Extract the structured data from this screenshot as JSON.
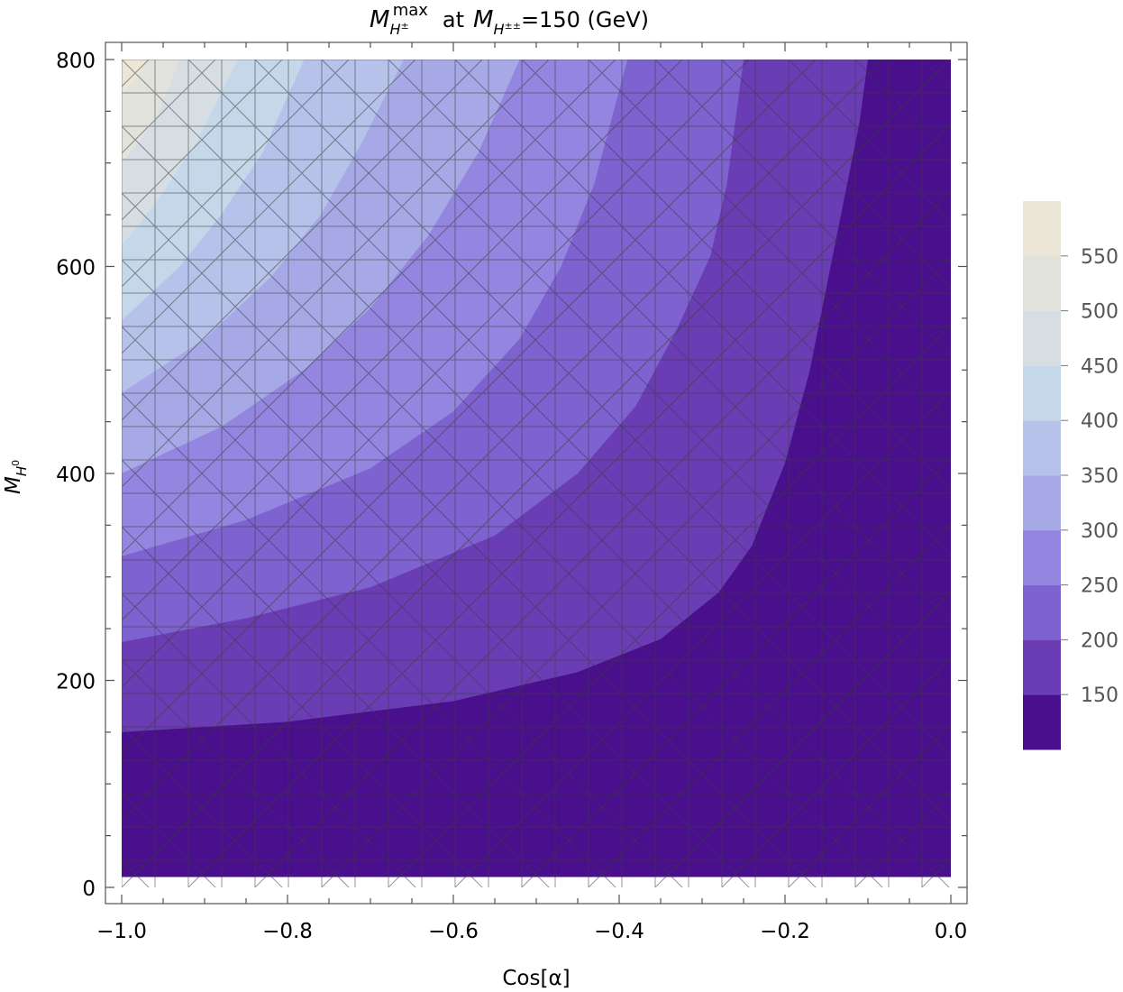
{
  "chart_data": {
    "type": "contour",
    "title": {
      "symbol": "M",
      "sub": "H",
      "sub_sup": "±",
      "sup": "max",
      "middle": "at",
      "symbol2": "M",
      "sub2": "H",
      "sub2_sup": "±±",
      "rest": "=150 (GeV)"
    },
    "xlabel": "Cos[α]",
    "ylabel": {
      "symbol": "M",
      "sub": "H",
      "sub_sup": "0"
    },
    "xlim": [
      -1.0,
      0.0
    ],
    "ylim": [
      0,
      800
    ],
    "xticks": [
      -1.0,
      -0.8,
      -0.6,
      -0.4,
      -0.2,
      0.0
    ],
    "xtick_labels": [
      "−1.0",
      "−0.8",
      "−0.6",
      "−0.4",
      "−0.2",
      "0.0"
    ],
    "yticks": [
      0,
      200,
      400,
      600,
      800
    ],
    "ytick_labels": [
      "0",
      "200",
      "400",
      "600",
      "800"
    ],
    "colorbar": {
      "labels": [
        "150",
        "200",
        "250",
        "300",
        "350",
        "400",
        "450",
        "500",
        "550"
      ],
      "levels": [
        150,
        200,
        250,
        300,
        350,
        400,
        450,
        500,
        550
      ],
      "colors": [
        "#4a0f8c",
        "#6a3db4",
        "#7e62d0",
        "#9485e0",
        "#a6a9e6",
        "#b6c2ea",
        "#c4d8ea",
        "#d6dee4",
        "#e2e2dc",
        "#ece6d8"
      ]
    },
    "bands": [
      {
        "color": "#4a0f8c",
        "boundary": []
      },
      {
        "color": "#6a3db4",
        "boundary": [
          [
            -1.0,
            150
          ],
          [
            -0.8,
            160
          ],
          [
            -0.6,
            180
          ],
          [
            -0.45,
            208
          ],
          [
            -0.35,
            240
          ],
          [
            -0.28,
            285
          ],
          [
            -0.24,
            330
          ],
          [
            -0.2,
            410
          ],
          [
            -0.17,
            500
          ],
          [
            -0.14,
            620
          ],
          [
            -0.11,
            740
          ],
          [
            -0.1,
            800
          ]
        ]
      },
      {
        "color": "#7e62d0",
        "boundary": [
          [
            -1.0,
            237
          ],
          [
            -0.85,
            260
          ],
          [
            -0.7,
            290
          ],
          [
            -0.55,
            340
          ],
          [
            -0.45,
            400
          ],
          [
            -0.38,
            465
          ],
          [
            -0.33,
            540
          ],
          [
            -0.29,
            610
          ],
          [
            -0.27,
            680
          ],
          [
            -0.25,
            800
          ]
        ]
      },
      {
        "color": "#9485e0",
        "boundary": [
          [
            -1.0,
            320
          ],
          [
            -0.85,
            355
          ],
          [
            -0.7,
            405
          ],
          [
            -0.6,
            460
          ],
          [
            -0.52,
            530
          ],
          [
            -0.47,
            600
          ],
          [
            -0.43,
            680
          ],
          [
            -0.39,
            800
          ]
        ]
      },
      {
        "color": "#a6a9e6",
        "boundary": [
          [
            -1.0,
            400
          ],
          [
            -0.88,
            445
          ],
          [
            -0.78,
            500
          ],
          [
            -0.7,
            560
          ],
          [
            -0.63,
            630
          ],
          [
            -0.57,
            710
          ],
          [
            -0.52,
            800
          ]
        ]
      },
      {
        "color": "#b6c2ea",
        "boundary": [
          [
            -1.0,
            478
          ],
          [
            -0.9,
            530
          ],
          [
            -0.82,
            590
          ],
          [
            -0.76,
            650
          ],
          [
            -0.71,
            720
          ],
          [
            -0.66,
            800
          ]
        ]
      },
      {
        "color": "#c4d8ea",
        "boundary": [
          [
            -1.0,
            548
          ],
          [
            -0.93,
            600
          ],
          [
            -0.88,
            650
          ],
          [
            -0.83,
            710
          ],
          [
            -0.78,
            800
          ]
        ]
      },
      {
        "color": "#d6dee4",
        "boundary": [
          [
            -1.0,
            620
          ],
          [
            -0.96,
            660
          ],
          [
            -0.91,
            720
          ],
          [
            -0.86,
            800
          ]
        ]
      },
      {
        "color": "#e2e2dc",
        "boundary": [
          [
            -1.0,
            700
          ],
          [
            -0.96,
            740
          ],
          [
            -0.93,
            800
          ]
        ]
      },
      {
        "color": "#ece6d8",
        "boundary": [
          [
            -1.0,
            765
          ],
          [
            -0.98,
            785
          ],
          [
            -0.97,
            800
          ]
        ]
      }
    ]
  }
}
